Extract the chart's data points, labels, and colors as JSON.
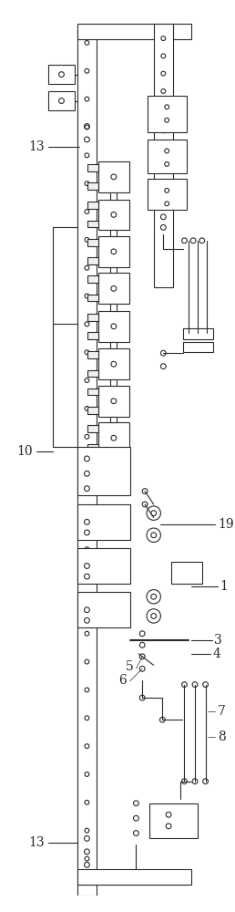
{
  "bg_color": "#ffffff",
  "line_color": "#2a2a2a",
  "fig_width": 2.58,
  "fig_height": 10.0,
  "dpi": 100
}
